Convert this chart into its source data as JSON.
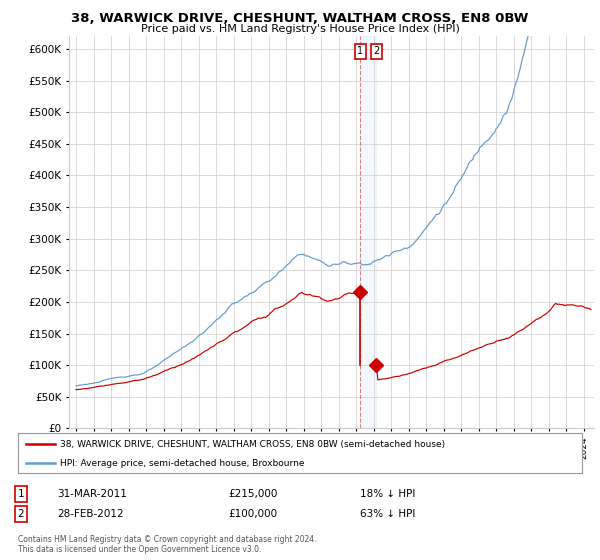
{
  "title": "38, WARWICK DRIVE, CHESHUNT, WALTHAM CROSS, EN8 0BW",
  "subtitle": "Price paid vs. HM Land Registry's House Price Index (HPI)",
  "ylim": [
    0,
    620000
  ],
  "yticks": [
    0,
    50000,
    100000,
    150000,
    200000,
    250000,
    300000,
    350000,
    400000,
    450000,
    500000,
    550000,
    600000
  ],
  "red_color": "#cc0000",
  "blue_color": "#6699cc",
  "bg_color": "#ffffff",
  "grid_color": "#cccccc",
  "point1_date_num": 2011.25,
  "point1_value": 215000,
  "point2_date_num": 2012.15,
  "point2_value": 100000,
  "legend_label_red": "38, WARWICK DRIVE, CHESHUNT, WALTHAM CROSS, EN8 0BW (semi-detached house)",
  "legend_label_blue": "HPI: Average price, semi-detached house, Broxbourne",
  "annotation1_date": "31-MAR-2011",
  "annotation1_price": "£215,000",
  "annotation1_pct": "18% ↓ HPI",
  "annotation2_date": "28-FEB-2012",
  "annotation2_price": "£100,000",
  "annotation2_pct": "63% ↓ HPI",
  "footer1": "Contains HM Land Registry data © Crown copyright and database right 2024.",
  "footer2": "This data is licensed under the Open Government Licence v3.0."
}
